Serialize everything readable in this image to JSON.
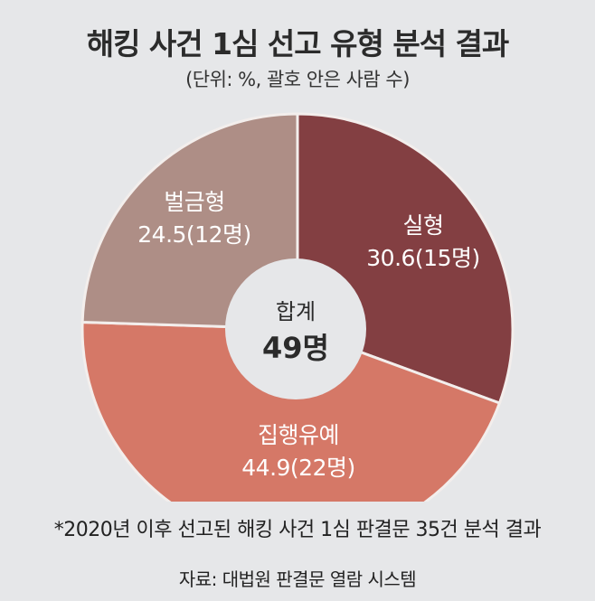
{
  "chart_data": {
    "type": "pie",
    "style": "donut",
    "title": "해킹 사건 1심 선고 유형 분석 결과",
    "subtitle": "(단위: %, 괄호 안은 사람 수)",
    "slices": [
      {
        "name": "실형",
        "value": 30.6,
        "count_label": "30.6(15명)",
        "color": "#833f42"
      },
      {
        "name": "집행유예",
        "value": 44.9,
        "count_label": "44.9(22명)",
        "color": "#d57867"
      },
      {
        "name": "벌금형",
        "value": 24.5,
        "count_label": "24.5(12명)",
        "color": "#ae8e86"
      }
    ],
    "center_label": "합계",
    "center_value": "49명",
    "footnote": "*2020년 이후 선고된 해킹 사건 1심 판결문 35건 분석 결과",
    "source": "자료: 대법원 판결문 열람 시스템",
    "background_color": "#e6e7e9"
  }
}
